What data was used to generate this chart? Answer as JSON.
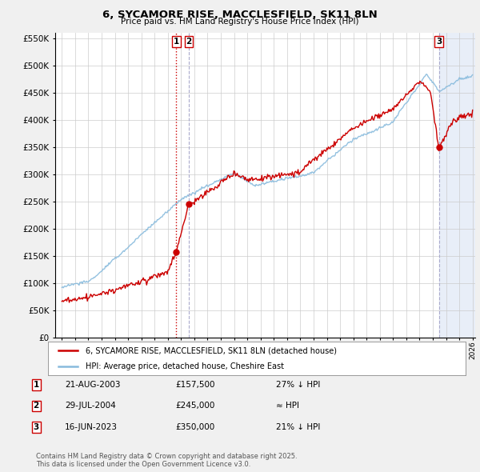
{
  "title": "6, SYCAMORE RISE, MACCLESFIELD, SK11 8LN",
  "subtitle": "Price paid vs. HM Land Registry's House Price Index (HPI)",
  "legend_house": "6, SYCAMORE RISE, MACCLESFIELD, SK11 8LN (detached house)",
  "legend_hpi": "HPI: Average price, detached house, Cheshire East",
  "footnote1": "Contains HM Land Registry data © Crown copyright and database right 2025.",
  "footnote2": "This data is licensed under the Open Government Licence v3.0.",
  "sales": [
    {
      "num": 1,
      "date_label": "21-AUG-2003",
      "price": 157500,
      "note": "27% ↓ HPI",
      "x_year": 2003.64
    },
    {
      "num": 2,
      "date_label": "29-JUL-2004",
      "price": 245000,
      "note": "≈ HPI",
      "x_year": 2004.57
    },
    {
      "num": 3,
      "date_label": "16-JUN-2023",
      "price": 350000,
      "note": "21% ↓ HPI",
      "x_year": 2023.46
    }
  ],
  "vline1_color": "#cc0000",
  "vline2_color": "#aaaacc",
  "vline3_color": "#aaaacc",
  "hpi_color": "#88bbdd",
  "house_color": "#cc0000",
  "background_color": "#f0f0f0",
  "plot_bg_color": "#ffffff",
  "future_shade_color": "#e8eef8",
  "ylim": [
    0,
    560000
  ],
  "xlim_start": 1994.5,
  "xlim_end": 2026.2,
  "yticks": [
    0,
    50000,
    100000,
    150000,
    200000,
    250000,
    300000,
    350000,
    400000,
    450000,
    500000,
    550000
  ],
  "xtick_years": [
    1995,
    1996,
    1997,
    1998,
    1999,
    2000,
    2001,
    2002,
    2003,
    2004,
    2005,
    2006,
    2007,
    2008,
    2009,
    2010,
    2011,
    2012,
    2013,
    2014,
    2015,
    2016,
    2017,
    2018,
    2019,
    2020,
    2021,
    2022,
    2023,
    2024,
    2025,
    2026
  ]
}
